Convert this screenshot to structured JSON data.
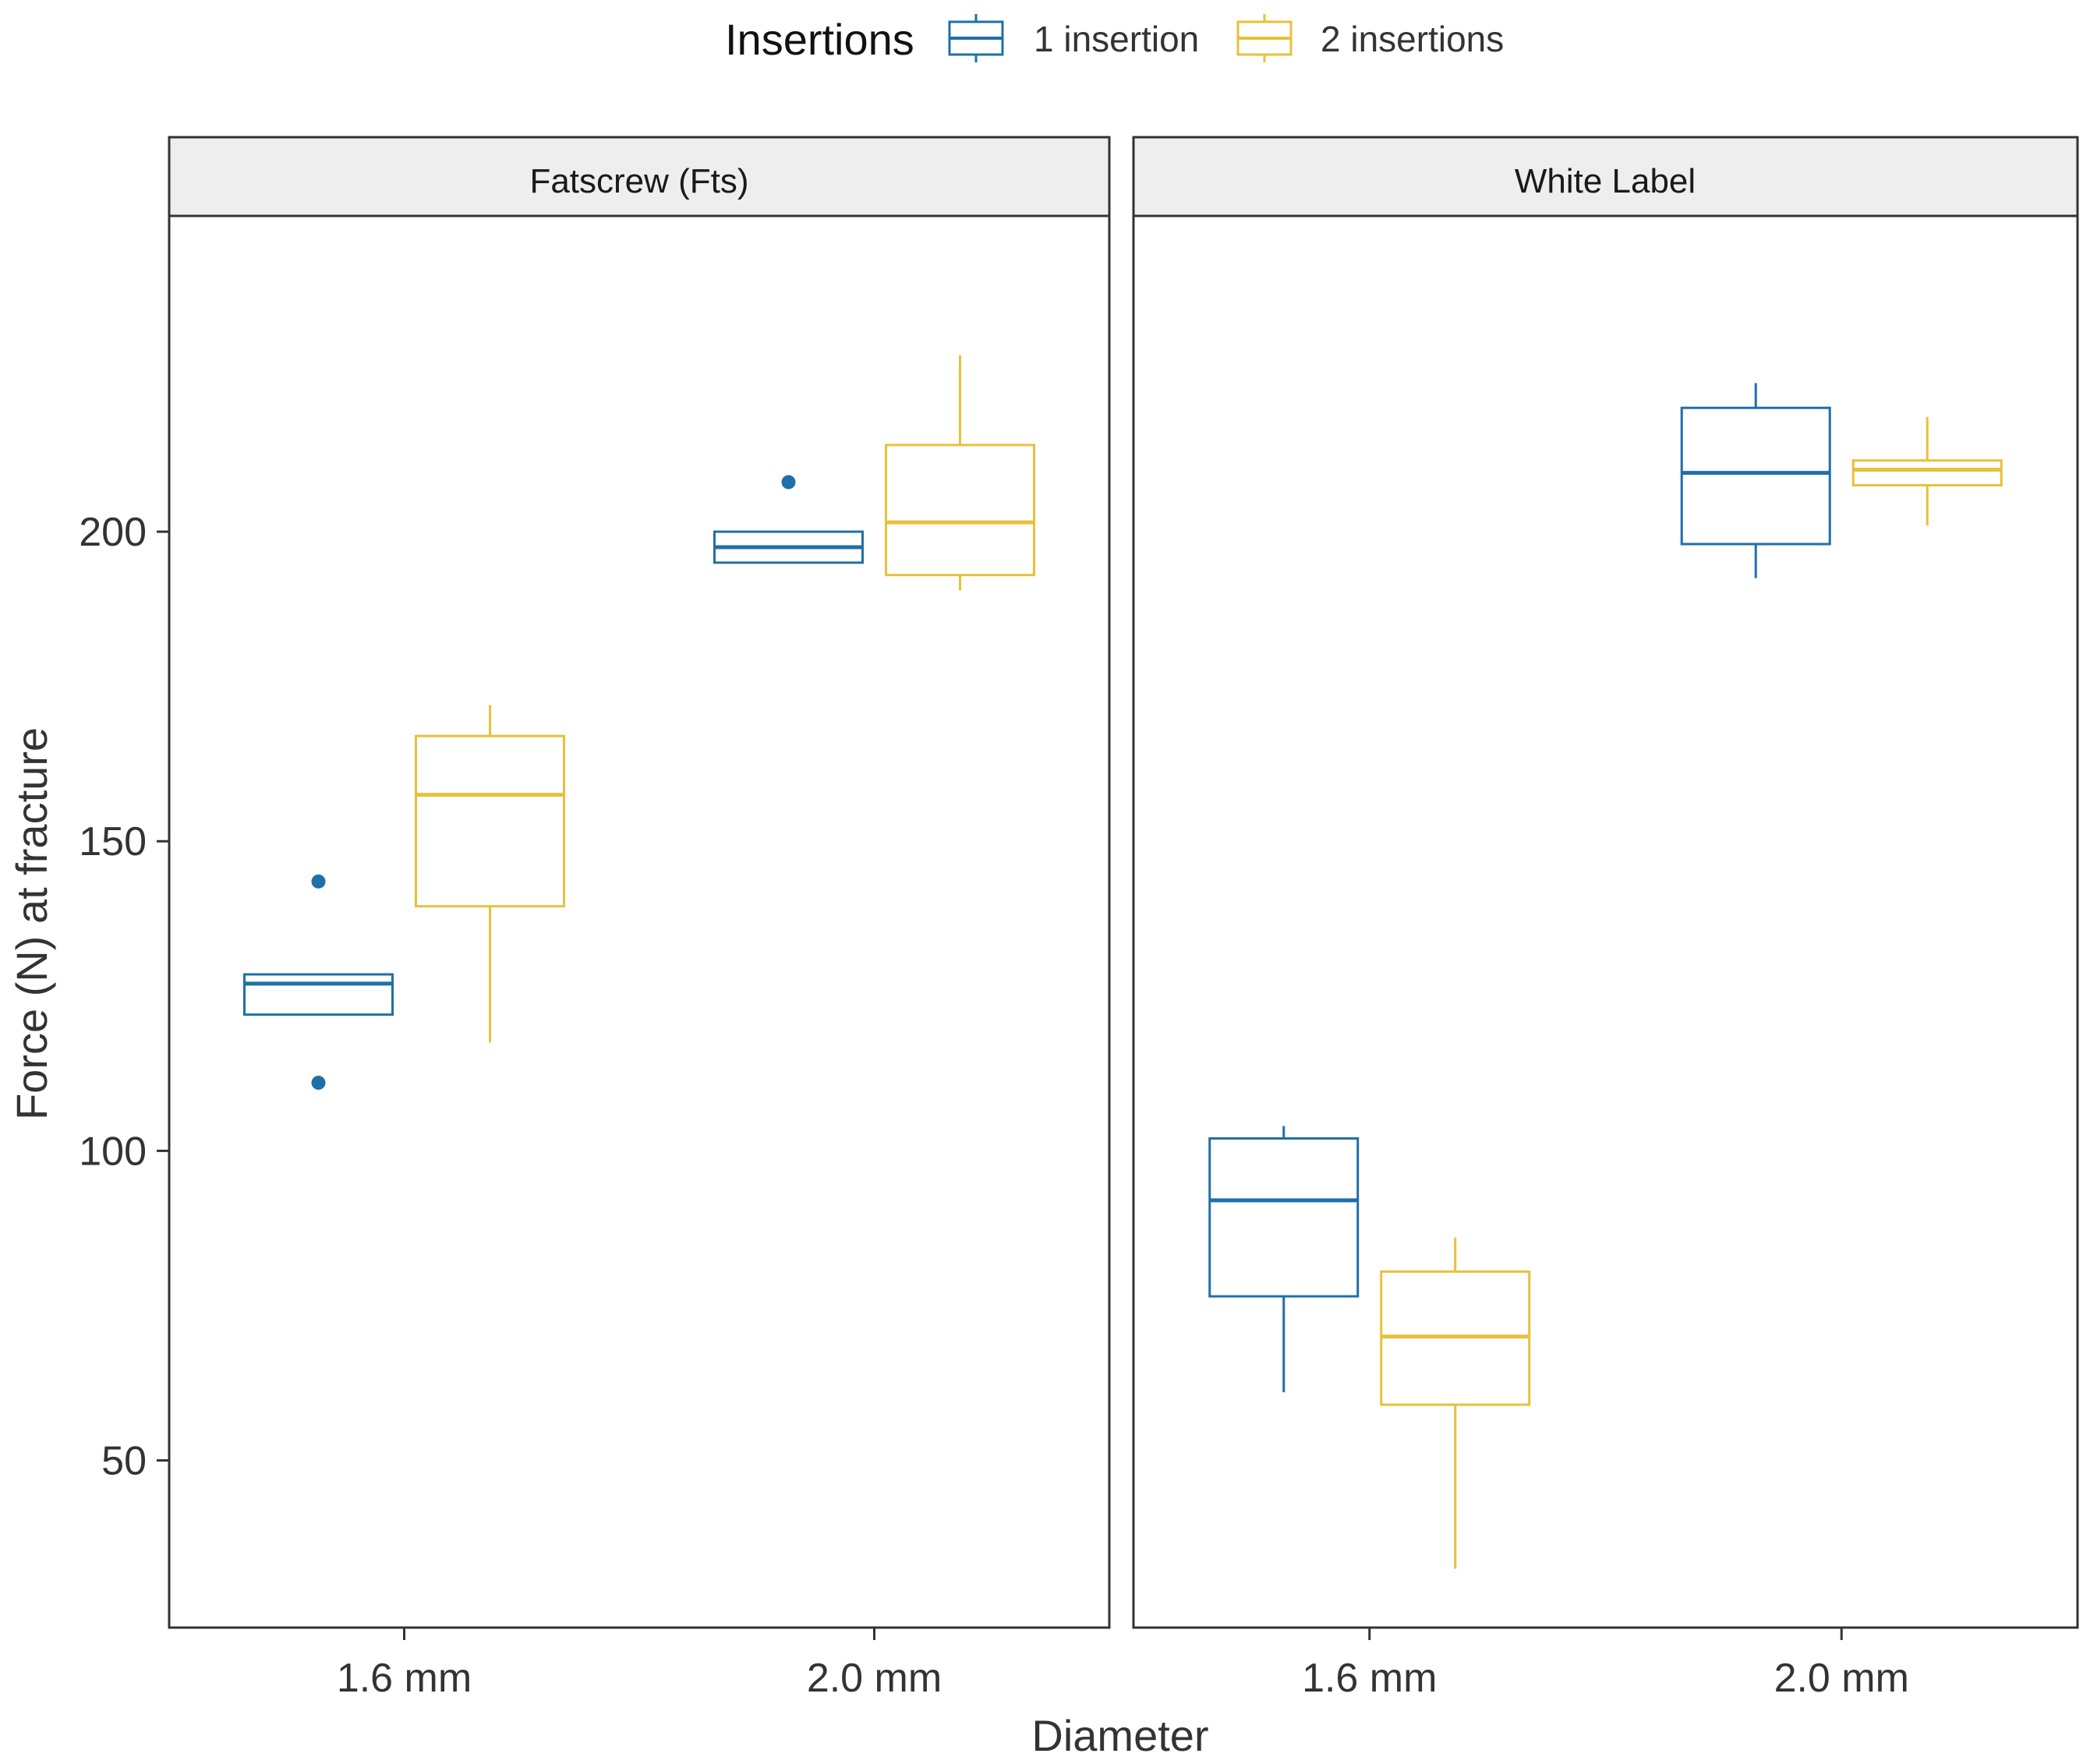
{
  "chart_data": {
    "type": "boxplot",
    "title": "",
    "xlabel": "Diameter",
    "ylabel": "Force (N) at fracture",
    "ylim": [
      23,
      251
    ],
    "y_ticks": [
      50,
      100,
      150,
      200
    ],
    "y_tick_labels": [
      "50",
      "100",
      "150",
      "200"
    ],
    "categories": [
      "1.6 mm",
      "2.0 mm"
    ],
    "legend": {
      "title": "Insertions",
      "position": "top",
      "entries": [
        {
          "name": "1 insertion",
          "color": "#1f6fa8"
        },
        {
          "name": "2 insertions",
          "color": "#e8c13a"
        }
      ]
    },
    "grid": false,
    "panels": [
      {
        "label": "Fatscrew (Fts)",
        "series": [
          {
            "name": "1 insertion",
            "boxes": [
              {
                "category": "1.6 mm",
                "whisker_low": 122,
                "q1": 122,
                "median": 127,
                "q3": 128.5,
                "whisker_high": 128.5,
                "outliers": [
                  143.5,
                  111
                ]
              },
              {
                "category": "2.0 mm",
                "whisker_low": 195,
                "q1": 195,
                "median": 197.5,
                "q3": 200,
                "whisker_high": 200,
                "outliers": [
                  208
                ]
              }
            ]
          },
          {
            "name": "2 insertions",
            "boxes": [
              {
                "category": "1.6 mm",
                "whisker_low": 117.5,
                "q1": 139.5,
                "median": 157.5,
                "q3": 167,
                "whisker_high": 172,
                "outliers": []
              },
              {
                "category": "2.0 mm",
                "whisker_low": 190.5,
                "q1": 193,
                "median": 201.5,
                "q3": 214,
                "whisker_high": 228.5,
                "outliers": []
              }
            ]
          }
        ]
      },
      {
        "label": "White Label",
        "series": [
          {
            "name": "1 insertion",
            "boxes": [
              {
                "category": "1.6 mm",
                "whisker_low": 61,
                "q1": 76.5,
                "median": 92,
                "q3": 102,
                "whisker_high": 104,
                "outliers": []
              },
              {
                "category": "2.0 mm",
                "whisker_low": 192.5,
                "q1": 198,
                "median": 209.5,
                "q3": 220,
                "whisker_high": 224,
                "outliers": []
              }
            ]
          },
          {
            "name": "2 insertions",
            "boxes": [
              {
                "category": "1.6 mm",
                "whisker_low": 32.5,
                "q1": 59,
                "median": 70,
                "q3": 80.5,
                "whisker_high": 86,
                "outliers": []
              },
              {
                "category": "2.0 mm",
                "whisker_low": 201,
                "q1": 207.5,
                "median": 210,
                "q3": 211.5,
                "whisker_high": 218.5,
                "outliers": []
              }
            ]
          }
        ]
      }
    ]
  },
  "colors": {
    "one_insertion": "#1f6fa8",
    "two_insertions": "#e8c13a",
    "strip_fill": "#eeeeee",
    "panel_border": "#333333"
  }
}
